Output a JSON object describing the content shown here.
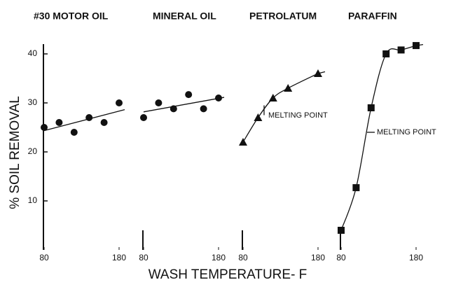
{
  "chart_data": [
    {
      "type": "scatter",
      "title": "#30 MOTOR OIL",
      "marker": "circle",
      "fit": "linear",
      "ylabel": "% SOIL REMOVAL",
      "xlabel": "WASH TEMPERATURE- F",
      "x": [
        80,
        100,
        120,
        140,
        160,
        180
      ],
      "values": [
        25,
        26,
        24,
        27,
        26,
        30
      ],
      "xlim": [
        80,
        180
      ],
      "xticks": [
        80,
        180
      ],
      "ylim": [
        0,
        42
      ],
      "yticks": [
        10,
        20,
        30,
        40
      ]
    },
    {
      "type": "scatter",
      "title": "MINERAL OIL",
      "marker": "circle",
      "fit": "linear",
      "x": [
        80,
        100,
        120,
        140,
        160,
        180
      ],
      "values": [
        27,
        30,
        28.8,
        31.7,
        28.8,
        31
      ],
      "xlim": [
        80,
        180
      ],
      "xticks": [
        80,
        180
      ],
      "ylim": [
        0,
        42
      ]
    },
    {
      "type": "scatter",
      "title": "PETROLATUM",
      "marker": "triangle",
      "fit": "curve",
      "x": [
        80,
        100,
        120,
        140,
        180
      ],
      "values": [
        22,
        27,
        31,
        33,
        36
      ],
      "xlim": [
        80,
        180
      ],
      "xticks": [
        80,
        180
      ],
      "ylim": [
        0,
        42
      ],
      "annotation": "MELTING POINT"
    },
    {
      "type": "scatter",
      "title": "PARAFFIN",
      "marker": "square",
      "fit": "curve",
      "x": [
        80,
        100,
        120,
        140,
        160,
        180
      ],
      "values": [
        4,
        12.7,
        29,
        40,
        40.8,
        41.7
      ],
      "xlim": [
        80,
        180
      ],
      "xticks": [
        80,
        180
      ],
      "ylim": [
        0,
        42
      ],
      "annotation": "MELTING POINT"
    }
  ]
}
